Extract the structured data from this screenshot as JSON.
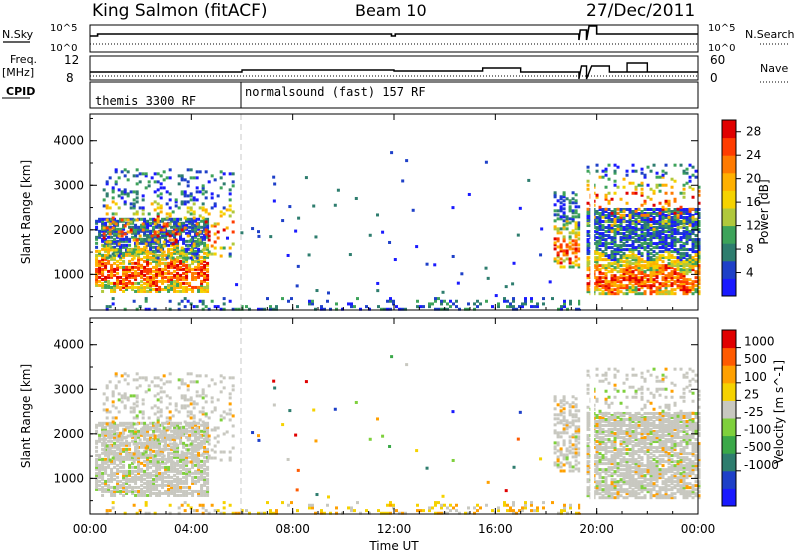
{
  "header": {
    "station": "King Salmon (fitACF)",
    "beam": "Beam 10",
    "date": "27/Dec/2011"
  },
  "side_labels": {
    "nsky": "N.Sky",
    "nsky_ticks": [
      "10^5",
      "10^0"
    ],
    "freq": "Freq.",
    "freq_unit": "[MHz]",
    "freq_ticks": [
      "12",
      "8"
    ],
    "cpid": "CPID",
    "nsearch": "N.Search",
    "nsearch_ticks": [
      "10^5",
      "10^0"
    ],
    "nave": "Nave",
    "nave_ticks": [
      "60",
      "0"
    ]
  },
  "cpid_segments": [
    {
      "label": "themis 3300 RF",
      "start_hour": 0
    },
    {
      "label": "normalsound (fast) 157 RF",
      "start_hour": 6
    }
  ],
  "time_axis": {
    "ticks": [
      "00:00",
      "04:00",
      "08:00",
      "12:00",
      "16:00",
      "20:00",
      "00:00"
    ],
    "label": "Time UT"
  },
  "colors": {
    "power_scale": [
      "#1a1aff",
      "#1e40c8",
      "#2e7d6e",
      "#3da35a",
      "#b0c83c",
      "#f5d200",
      "#ffb000",
      "#ff7a00",
      "#ff3c00",
      "#e00000"
    ],
    "velocity_scale": [
      "#1a1aff",
      "#1e40c8",
      "#2e7d6e",
      "#3aa848",
      "#7ed03c",
      "#c8c8c0",
      "#f5d200",
      "#ffa000",
      "#ff5a00",
      "#e00000"
    ]
  },
  "chart_data": [
    {
      "type": "heatmap",
      "name": "power",
      "xlabel": "",
      "ylabel": "Slant Range [km]",
      "x_range_hours": [
        0,
        24
      ],
      "ylim": [
        200,
        4600
      ],
      "yticks": [
        1000,
        2000,
        3000,
        4000
      ],
      "colorbar": {
        "label": "Power [dB]",
        "ticks": [
          "28",
          "24",
          "20",
          "16",
          "12",
          "8",
          "4"
        ],
        "range": [
          0,
          30
        ]
      }
    },
    {
      "type": "heatmap",
      "name": "velocity",
      "xlabel": "Time UT",
      "ylabel": "Slant Range [km]",
      "x_range_hours": [
        0,
        24
      ],
      "ylim": [
        200,
        4600
      ],
      "yticks": [
        1000,
        2000,
        3000,
        4000
      ],
      "colorbar": {
        "label": "Velocity [m s^-1]",
        "ticks": [
          "1000",
          "500",
          "100",
          "25",
          "-25",
          "-100",
          "-500",
          "-1000"
        ],
        "range": [
          -1000,
          1000
        ]
      }
    }
  ]
}
